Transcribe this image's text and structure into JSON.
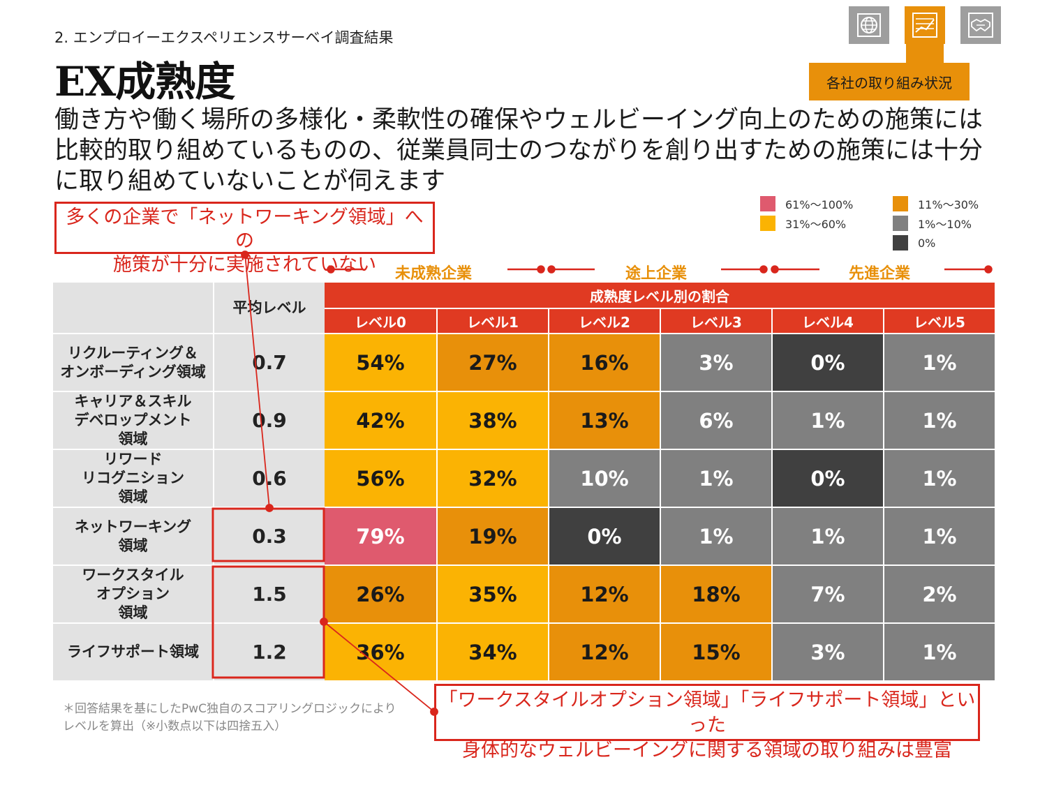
{
  "header": {
    "subtitle": "2. エンプロイーエクスペリエンスサーベイ調査結果",
    "title": "EX成熟度",
    "lead": "働き方や働く場所の多様化・柔軟性の確保やウェルビーイング向上のための施策には比較的取り組めているものの、従業員同士のつながりを創り出すための施策には十分に取り組めていないことが伺えます"
  },
  "nav": {
    "buttons": [
      {
        "icon": "globe-icon",
        "active": false
      },
      {
        "icon": "chart-icon",
        "active": true
      },
      {
        "icon": "handshake-icon",
        "active": false
      }
    ],
    "active_label": "各社の取り組み状況"
  },
  "legend": [
    {
      "label": "61%〜100%",
      "color": "#df5a6e"
    },
    {
      "label": "31%〜60%",
      "color": "#fbb303"
    },
    {
      "label": "11%〜30%",
      "color": "#e8900a"
    },
    {
      "label": "1%〜10%",
      "color": "#808080"
    },
    {
      "label": "0%",
      "color": "#404040"
    }
  ],
  "callouts": {
    "top": [
      "多くの企業で「ネットワーキング領域」への",
      "施策が十分に実施されていない"
    ],
    "bottom": [
      "「ワークスタイルオプション領域」「ライフサポート領域」といった",
      "身体的なウェルビーイングに関する領域の取り組みは豊富"
    ]
  },
  "groups": [
    "未成熟企業",
    "途上企業",
    "先進企業"
  ],
  "chart_data": {
    "type": "table",
    "avg_header": "平均レベル",
    "span_header": "成熟度レベル別の割合",
    "columns": [
      "レベル0",
      "レベル1",
      "レベル2",
      "レベル3",
      "レベル4",
      "レベル5"
    ],
    "rows": [
      {
        "label": [
          "リクルーティング＆",
          "オンボーディング領域"
        ],
        "avg": "0.7",
        "values": [
          54,
          27,
          16,
          3,
          0,
          1
        ]
      },
      {
        "label": [
          "キャリア＆スキル",
          "デベロップメント",
          "領域"
        ],
        "avg": "0.9",
        "values": [
          42,
          38,
          13,
          6,
          1,
          1
        ]
      },
      {
        "label": [
          "リワード",
          "リコグニション",
          "領域"
        ],
        "avg": "0.6",
        "values": [
          56,
          32,
          10,
          1,
          0,
          1
        ]
      },
      {
        "label": [
          "ネットワーキング",
          "領域"
        ],
        "avg": "0.3",
        "values": [
          79,
          19,
          0,
          1,
          1,
          1
        ]
      },
      {
        "label": [
          "ワークスタイル",
          "オプション",
          "領域"
        ],
        "avg": "1.5",
        "values": [
          26,
          35,
          12,
          18,
          7,
          2
        ]
      },
      {
        "label": [
          "ライフサポート領域"
        ],
        "avg": "1.2",
        "values": [
          36,
          34,
          12,
          15,
          3,
          1
        ]
      }
    ]
  },
  "footnote": [
    "＊回答結果を基にしたPwC独自のスコアリングロジックにより",
    "レベルを算出（※小数点以下は四捨五入）"
  ]
}
